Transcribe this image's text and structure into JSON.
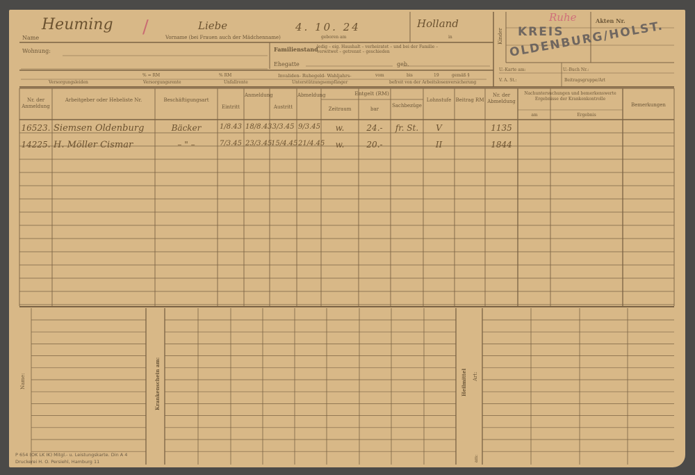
{
  "header": {
    "name_label": "Name",
    "vorname_label": "Vorname (bei Frauen auch der Mädchenname)",
    "geboren_label": "geboren am",
    "in_label": "in",
    "wohnung_label": "Wohnung:",
    "familienstand_label": "Familienstand",
    "familienstand_options_1": "ledig – eig. Haushalt – verheiratet – und bei der Familie –",
    "familienstand_options_2": "verwitwet – getrennt – geschieden",
    "ehegatte_label": "Ehegatte",
    "geb_label": "geb.",
    "pct_1": "% = RM",
    "pct_2": "% RM",
    "invaliden_label": "Invaliden- Ruhegeld- Wahljahrs-",
    "vom_label": "vom",
    "bis_label": "bis",
    "jahr_label": "19",
    "gemaess_label": "gemäß §",
    "versorgungsleiden": "Versorgungsleiden",
    "versorgungsrente": "Versorgungsrente",
    "unfallrente": "Unfallrente",
    "unterstuetzung": "Unterstützungsempfänger",
    "befreit": "befreit von der Arbeitslosenversicherung",
    "kinder_label": "Kinder",
    "akten_label": "Akten Nr.",
    "ukarte_label": "U.-Karte am:",
    "ubuch_label": "U.-Buch Nr.:",
    "vast_label": "V. A. St.:",
    "beitragsgruppe_label": "Beitragsgruppe/Art",
    "handwritten_name": "Heuming",
    "handwritten_vorname": "Liebe",
    "handwritten_geboren": "4. 10. 24",
    "handwritten_in": "Holland",
    "handwritten_red_mark": "Ruhe"
  },
  "stamp": {
    "line1": "KREIS",
    "line2": "OLDENBURG/HOLST."
  },
  "table": {
    "columns": [
      "Nr. der Anmeldung",
      "Arbeitgeber oder Hebeliste Nr.",
      "Beschäftigungsart",
      "Eintritt",
      "Anmeldung",
      "Austritt",
      "Abmeldung",
      "Zeitraum",
      "bar",
      "Sachbezüge",
      "Lohnstufe",
      "Beitrag RM",
      "Nr. der Abmeldung",
      "Nachuntersuchungen und bemerkenswerte Ergebnisse der Krankenkontrolle",
      "Bemerkungen"
    ],
    "entgelt_label": "Entgelt (RM)",
    "nachunters_am": "am",
    "nachunters_ergebnis": "Ergebnis",
    "rows": [
      {
        "nr": "16523.",
        "arbeitgeber": "Siemsen Oldenburg",
        "art": "Bäcker",
        "eintritt": "1/8.43",
        "anmeldung": "18/8.43",
        "austritt": "3/3.45",
        "abmeldung": "9/3.45",
        "zeitraum": "w.",
        "bar": "24.-",
        "sach": "fr. St.",
        "lohnstufe": "V",
        "beitrag": "",
        "nr_ab": "1135"
      },
      {
        "nr": "14225.",
        "arbeitgeber": "H. Möller Cismar",
        "art": "– \" –",
        "eintritt": "7/3.45",
        "anmeldung": "23/3.45",
        "austritt": "15/4.45",
        "abmeldung": "21/4.45",
        "zeitraum": "w.",
        "bar": "20.-",
        "sach": "",
        "lohnstufe": "II",
        "beitrag": "",
        "nr_ab": "1844"
      }
    ]
  },
  "lower": {
    "name_label": "Name:",
    "krankenschein_label": "Krankenschein am:",
    "heilmittel_label": "Heilmittel",
    "art_label": "Art:",
    "am_label": "am:"
  },
  "footer": {
    "line1": "P 654 (OK LK IK) Mitgl.- u. Leistungskarte. Din A 4",
    "line2": "Druckerei H. O. Persiehl, Hamburg 11"
  },
  "colors": {
    "card": "#d8b887",
    "ink": "#6b5230",
    "stamp": "#5f5a5a",
    "red_pencil": "#d0707a"
  }
}
